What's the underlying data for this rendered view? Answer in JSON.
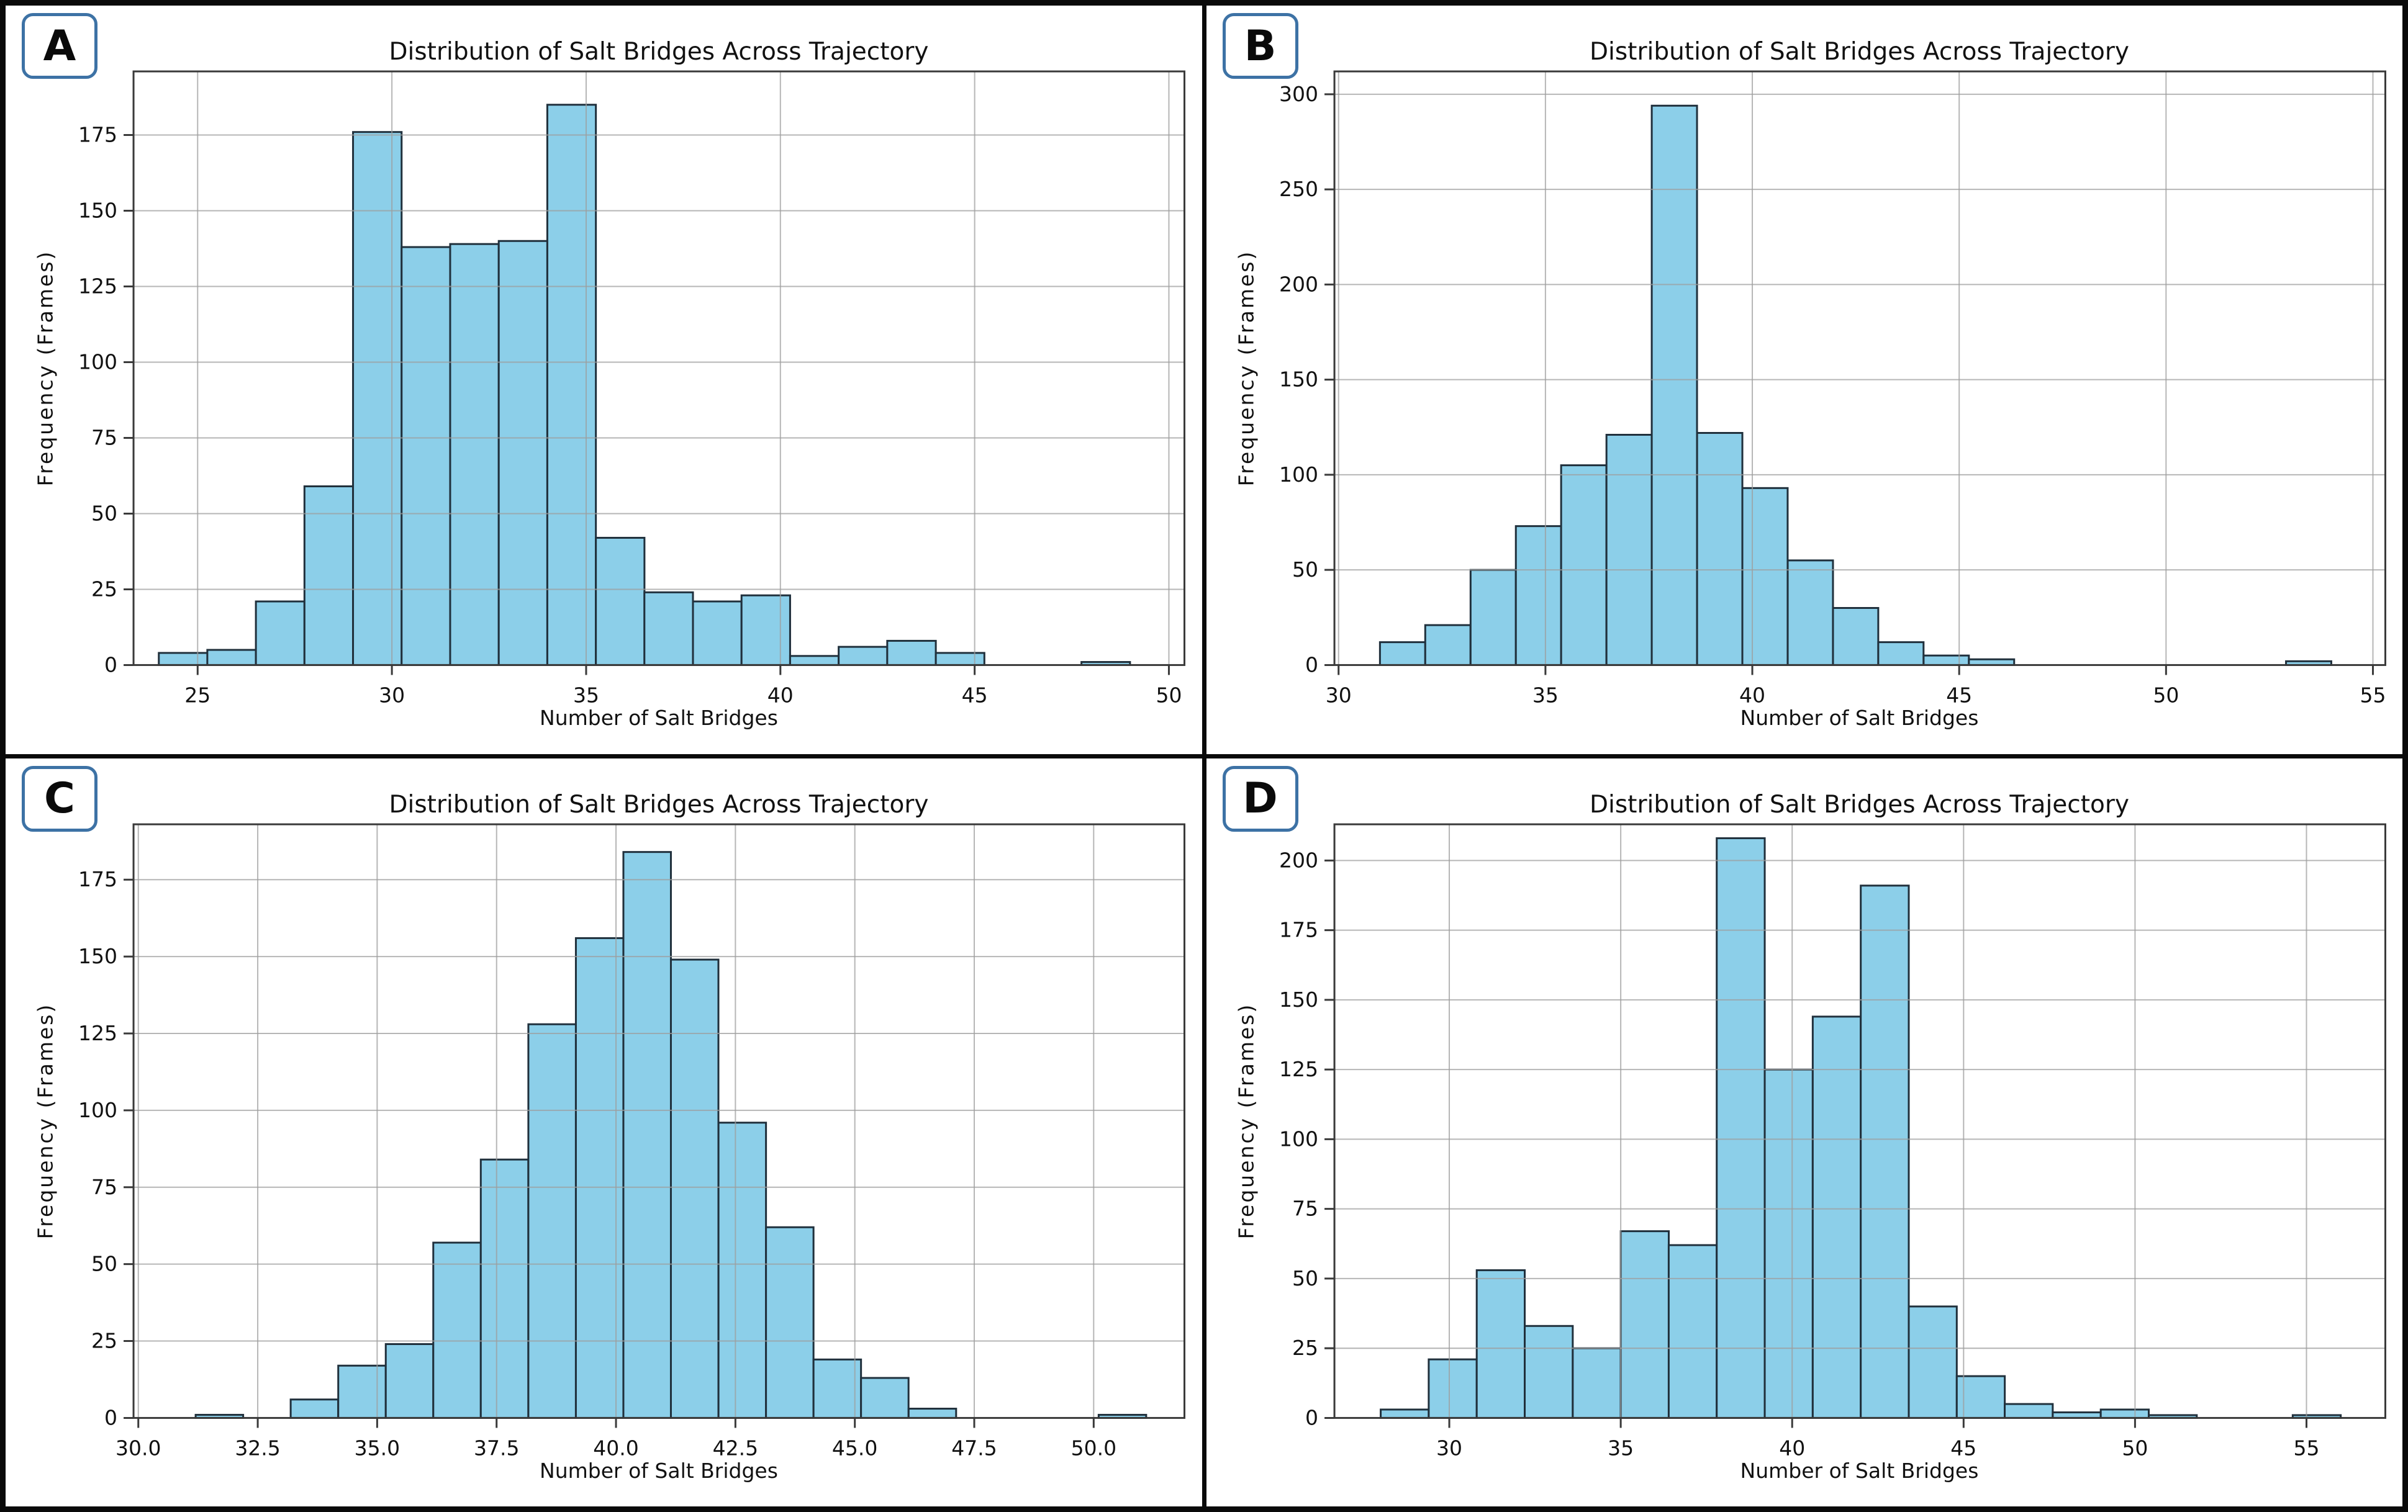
{
  "figure": {
    "layout": "2x2-grid",
    "border_color": "#0a0a0a",
    "badge_border_color": "#3d72a5"
  },
  "style": {
    "bar_fill": "#8ccfe9",
    "bar_edge": "#20303c",
    "grid_color": "#9e9e9e",
    "spine_color": "#3a3a3a",
    "text_color": "#111111"
  },
  "chart_data": [
    {
      "type": "bar",
      "panel_label": "A",
      "title": "Distribution of Salt Bridges Across Trajectory",
      "xlabel": "Number of Salt Bridges",
      "ylabel": "Frequency (Frames)",
      "bin_start": 24.0,
      "bin_width": 1.25,
      "counts": [
        4,
        5,
        21,
        59,
        176,
        138,
        139,
        140,
        185,
        42,
        24,
        21,
        23,
        3,
        6,
        8,
        4,
        0,
        0,
        1
      ],
      "xlim": [
        23.35,
        50.4
      ],
      "ylim": [
        0,
        196
      ],
      "xticks": [
        "25",
        "30",
        "35",
        "40",
        "45",
        "50"
      ],
      "yticks": [
        "0",
        "25",
        "50",
        "75",
        "100",
        "125",
        "150",
        "175"
      ],
      "grid": true,
      "legend": "none"
    },
    {
      "type": "bar",
      "panel_label": "B",
      "title": "Distribution of Salt Bridges Across Trajectory",
      "xlabel": "Number of Salt Bridges",
      "ylabel": "Frequency (Frames)",
      "bin_start": 31.0,
      "bin_width": 1.095,
      "counts": [
        12,
        21,
        50,
        73,
        105,
        121,
        294,
        122,
        93,
        55,
        30,
        12,
        5,
        3,
        0,
        0,
        0,
        0,
        0,
        0,
        2
      ],
      "xlim": [
        29.9,
        55.3
      ],
      "ylim": [
        0,
        312
      ],
      "xticks": [
        "30",
        "35",
        "40",
        "45",
        "50",
        "55"
      ],
      "yticks": [
        "0",
        "50",
        "100",
        "150",
        "200",
        "250",
        "300"
      ],
      "grid": true,
      "legend": "none"
    },
    {
      "type": "bar",
      "panel_label": "C",
      "title": "Distribution of Salt Bridges Across Trajectory",
      "xlabel": "Number of Salt Bridges",
      "ylabel": "Frequency (Frames)",
      "bin_start": 31.2,
      "bin_width": 0.995,
      "counts": [
        1,
        0,
        6,
        17,
        24,
        57,
        84,
        128,
        156,
        184,
        149,
        96,
        62,
        19,
        13,
        3,
        0,
        0,
        0,
        1
      ],
      "xlim": [
        29.9,
        51.9
      ],
      "ylim": [
        0,
        193
      ],
      "xticks": [
        "30.0",
        "32.5",
        "35.0",
        "37.5",
        "40.0",
        "42.5",
        "45.0",
        "47.5",
        "50.0"
      ],
      "yticks": [
        "0",
        "25",
        "50",
        "75",
        "100",
        "125",
        "150",
        "175"
      ],
      "grid": true,
      "legend": "none"
    },
    {
      "type": "bar",
      "panel_label": "D",
      "title": "Distribution of Salt Bridges Across Trajectory",
      "xlabel": "Number of Salt Bridges",
      "ylabel": "Frequency (Frames)",
      "bin_start": 28.0,
      "bin_width": 1.4,
      "counts": [
        3,
        21,
        53,
        33,
        25,
        67,
        62,
        208,
        125,
        144,
        191,
        40,
        15,
        5,
        2,
        3,
        1,
        0,
        0,
        1
      ],
      "xlim": [
        26.65,
        57.3
      ],
      "ylim": [
        0,
        213
      ],
      "xticks": [
        "30",
        "35",
        "40",
        "45",
        "50",
        "55"
      ],
      "yticks": [
        "0",
        "25",
        "50",
        "75",
        "100",
        "125",
        "150",
        "175",
        "200"
      ],
      "grid": true,
      "legend": "none"
    }
  ]
}
